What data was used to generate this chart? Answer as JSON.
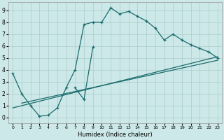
{
  "xlabel": "Humidex (Indice chaleur)",
  "bg_color": "#cce8e8",
  "grid_color": "#aacccc",
  "line_color": "#1a6b6b",
  "xlim": [
    -0.5,
    23.5
  ],
  "ylim": [
    -0.5,
    9.7
  ],
  "xticks": [
    0,
    1,
    2,
    3,
    4,
    5,
    6,
    7,
    8,
    9,
    10,
    11,
    12,
    13,
    14,
    15,
    16,
    17,
    18,
    19,
    20,
    21,
    22,
    23
  ],
  "yticks": [
    0,
    1,
    2,
    3,
    4,
    5,
    6,
    7,
    8,
    9
  ],
  "curve1_x": [
    0,
    1,
    2,
    3,
    4,
    5,
    6,
    7,
    8,
    9,
    10,
    11,
    12,
    13,
    14,
    15,
    16,
    17,
    18,
    19,
    20,
    21,
    22,
    23
  ],
  "curve1_y": [
    3.7,
    2.0,
    1.0,
    0.1,
    0.2,
    0.8,
    2.5,
    4.0,
    7.8,
    8.0,
    8.0,
    9.2,
    8.7,
    8.9,
    8.5,
    8.1,
    7.5,
    6.5,
    7.0,
    6.5,
    6.1,
    5.8,
    5.5,
    5.0
  ],
  "curve2_x": [
    7,
    8,
    9
  ],
  "curve2_y": [
    2.5,
    1.5,
    5.9
  ],
  "line1_x": [
    0,
    23
  ],
  "line1_y": [
    0.8,
    5.1
  ],
  "line2_x": [
    1,
    23
  ],
  "line2_y": [
    1.2,
    4.8
  ]
}
